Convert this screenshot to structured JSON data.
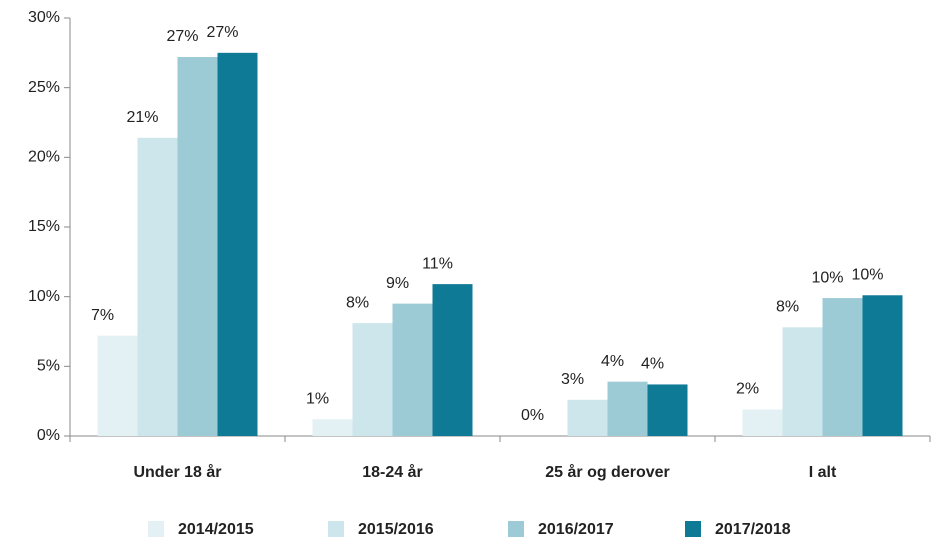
{
  "chart_data": {
    "type": "bar",
    "categories": [
      "Under 18 år",
      "18-24 år",
      "25 år og derover",
      "I alt"
    ],
    "series": [
      {
        "name": "2014/2015",
        "color": "#e3f1f5",
        "values": [
          7.2,
          1.2,
          0,
          1.9
        ],
        "value_labels": [
          "7%",
          "1%",
          "0%",
          "2%"
        ]
      },
      {
        "name": "2015/2016",
        "color": "#cce6ec",
        "values": [
          21.4,
          8.1,
          2.6,
          7.8
        ],
        "value_labels": [
          "21%",
          "8%",
          "3%",
          "8%"
        ]
      },
      {
        "name": "2016/2017",
        "color": "#9ccbd6",
        "values": [
          27.2,
          9.5,
          3.9,
          9.9
        ],
        "value_labels": [
          "27%",
          "9%",
          "4%",
          "10%"
        ]
      },
      {
        "name": "2017/2018",
        "color": "#0e7a96",
        "values": [
          27.5,
          10.9,
          3.7,
          10.1
        ],
        "value_labels": [
          "27%",
          "11%",
          "4%",
          "10%"
        ]
      }
    ],
    "ylim": [
      0,
      30
    ],
    "yticks": [
      {
        "value": 0,
        "label": "0%"
      },
      {
        "value": 5,
        "label": "5%"
      },
      {
        "value": 10,
        "label": "10%"
      },
      {
        "value": 15,
        "label": "15%"
      },
      {
        "value": 20,
        "label": "20%"
      },
      {
        "value": 25,
        "label": "25%"
      },
      {
        "value": 30,
        "label": "30%"
      }
    ],
    "legend": "bottom"
  }
}
